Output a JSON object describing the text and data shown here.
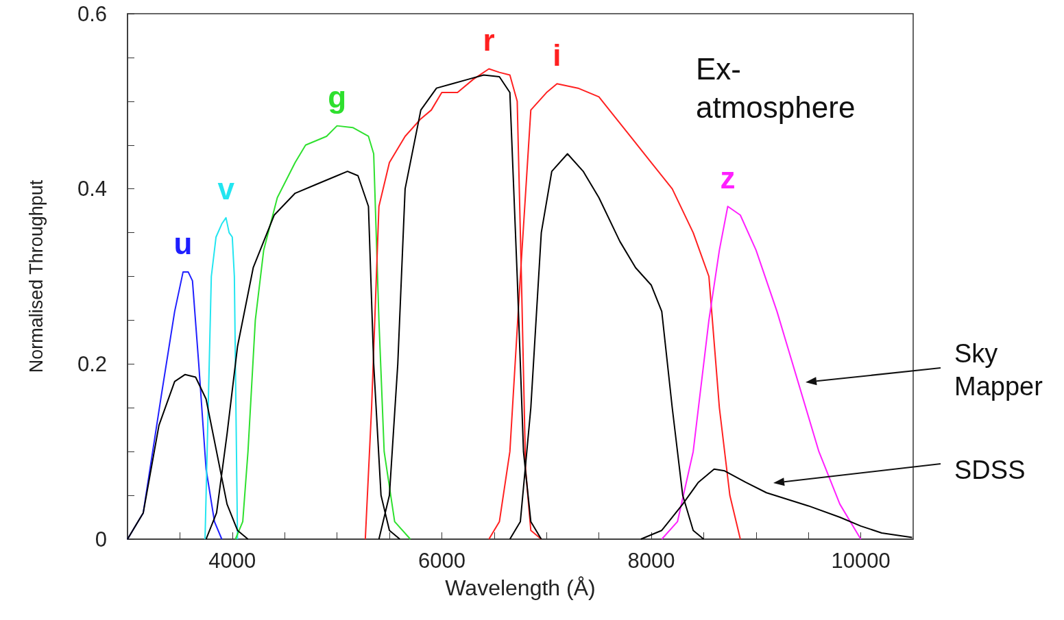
{
  "chart_data": {
    "type": "line",
    "xlabel": "Wavelength (Å)",
    "ylabel": "Normalised Throughput",
    "xlim": [
      3000,
      10500
    ],
    "ylim": [
      0,
      0.6
    ],
    "xticks": [
      {
        "value": 3500,
        "label": null
      },
      4000,
      {
        "value": 4500,
        "label": null
      },
      {
        "value": 5000,
        "label": null
      },
      {
        "value": 5500,
        "label": null
      },
      6000,
      {
        "value": 6500,
        "label": null
      },
      {
        "value": 7000,
        "label": null
      },
      {
        "value": 7500,
        "label": null
      },
      8000,
      {
        "value": 8500,
        "label": null
      },
      {
        "value": 9000,
        "label": null
      },
      {
        "value": 9500,
        "label": null
      },
      10000
    ],
    "yticks": [
      0,
      {
        "value": 0.05,
        "label": null
      },
      {
        "value": 0.1,
        "label": null
      },
      {
        "value": 0.15,
        "label": null
      },
      0.2,
      {
        "value": 0.25,
        "label": null
      },
      {
        "value": 0.3,
        "label": null
      },
      {
        "value": 0.35,
        "label": null
      },
      0.4,
      {
        "value": 0.45,
        "label": null
      },
      {
        "value": 0.5,
        "label": null
      },
      {
        "value": 0.55,
        "label": null
      },
      0.6
    ],
    "grid": false,
    "legend": false,
    "annotations": [
      "Ex-\natmosphere",
      "Sky\nMapper",
      "SDSS"
    ],
    "series": [
      {
        "name": "u",
        "color": "#1f1fff",
        "x": [
          3000,
          3150,
          3320,
          3450,
          3530,
          3580,
          3620,
          3680,
          3750,
          3830,
          3900
        ],
        "values": [
          0,
          0.03,
          0.162,
          0.26,
          0.305,
          0.305,
          0.295,
          0.2,
          0.08,
          0.02,
          0
        ]
      },
      {
        "name": "v",
        "color": "#22e5f0",
        "x": [
          3740,
          3780,
          3800,
          3845,
          3900,
          3940,
          3970,
          4000,
          4020,
          4040,
          4050
        ],
        "values": [
          0,
          0.2,
          0.3,
          0.345,
          0.36,
          0.367,
          0.35,
          0.345,
          0.3,
          0.1,
          0
        ]
      },
      {
        "name": "g",
        "color": "#2ee02e",
        "x": [
          4030,
          4100,
          4150,
          4220,
          4300,
          4430,
          4600,
          4700,
          4900,
          5000,
          5150,
          5300,
          5350,
          5400,
          5450,
          5550,
          5700
        ],
        "values": [
          0,
          0.02,
          0.1,
          0.25,
          0.33,
          0.39,
          0.43,
          0.45,
          0.46,
          0.472,
          0.47,
          0.46,
          0.44,
          0.25,
          0.1,
          0.02,
          0
        ]
      },
      {
        "name": "r",
        "color": "#ff2020",
        "x": [
          5270,
          5330,
          5400,
          5500,
          5650,
          5800,
          5900,
          6000,
          6150,
          6300,
          6450,
          6550,
          6650,
          6720,
          6760,
          6800,
          6850,
          6950
        ],
        "values": [
          0,
          0.15,
          0.38,
          0.43,
          0.46,
          0.48,
          0.49,
          0.51,
          0.51,
          0.525,
          0.537,
          0.533,
          0.53,
          0.5,
          0.3,
          0.08,
          0.01,
          0
        ]
      },
      {
        "name": "i",
        "color": "#ff2020",
        "x": [
          6450,
          6550,
          6650,
          6750,
          6850,
          7000,
          7100,
          7300,
          7500,
          7600,
          7800,
          8000,
          8200,
          8400,
          8550,
          8650,
          8750,
          8850
        ],
        "values": [
          0,
          0.02,
          0.1,
          0.3,
          0.49,
          0.51,
          0.52,
          0.515,
          0.505,
          0.49,
          0.46,
          0.43,
          0.4,
          0.35,
          0.3,
          0.15,
          0.05,
          0
        ]
      },
      {
        "name": "z",
        "color": "#ff20ff",
        "x": [
          8100,
          8250,
          8400,
          8550,
          8650,
          8730,
          8850,
          9000,
          9200,
          9400,
          9600,
          9800,
          9950,
          10000
        ],
        "values": [
          0,
          0.02,
          0.1,
          0.25,
          0.33,
          0.38,
          0.37,
          0.33,
          0.26,
          0.18,
          0.1,
          0.04,
          0.01,
          0
        ]
      },
      {
        "color": "#000000",
        "x": [
          3000,
          3150,
          3300,
          3450,
          3550,
          3650,
          3750,
          3850,
          3950,
          4050,
          4150
        ],
        "values": [
          0,
          0.03,
          0.13,
          0.18,
          0.188,
          0.185,
          0.16,
          0.1,
          0.04,
          0.01,
          0
        ]
      },
      {
        "color": "#000000",
        "x": [
          3750,
          3850,
          3950,
          4050,
          4200,
          4400,
          4600,
          4800,
          5000,
          5100,
          5200,
          5300,
          5350,
          5420,
          5500,
          5600
        ],
        "values": [
          0,
          0.03,
          0.12,
          0.22,
          0.31,
          0.37,
          0.395,
          0.405,
          0.415,
          0.42,
          0.415,
          0.38,
          0.2,
          0.05,
          0.01,
          0
        ]
      },
      {
        "color": "#000000",
        "x": [
          5400,
          5500,
          5580,
          5650,
          5800,
          5950,
          6100,
          6250,
          6400,
          6550,
          6650,
          6720,
          6780,
          6850,
          6950
        ],
        "values": [
          0,
          0.05,
          0.2,
          0.4,
          0.49,
          0.515,
          0.52,
          0.525,
          0.53,
          0.528,
          0.51,
          0.3,
          0.1,
          0.02,
          0
        ]
      },
      {
        "color": "#000000",
        "x": [
          6650,
          6750,
          6850,
          6950,
          7050,
          7200,
          7350,
          7500,
          7700,
          7850,
          8000,
          8100,
          8200,
          8300,
          8400,
          8500
        ],
        "values": [
          0,
          0.02,
          0.15,
          0.35,
          0.42,
          0.44,
          0.42,
          0.39,
          0.34,
          0.31,
          0.29,
          0.26,
          0.15,
          0.05,
          0.01,
          0
        ]
      },
      {
        "color": "#000000",
        "x": [
          7900,
          8100,
          8300,
          8450,
          8600,
          8700,
          8900,
          9100,
          9500,
          9800,
          10000,
          10200,
          10490
        ],
        "values": [
          0,
          0.01,
          0.04,
          0.065,
          0.08,
          0.078,
          0.065,
          0.053,
          0.038,
          0.025,
          0.015,
          0.007,
          0.002
        ]
      }
    ]
  }
}
